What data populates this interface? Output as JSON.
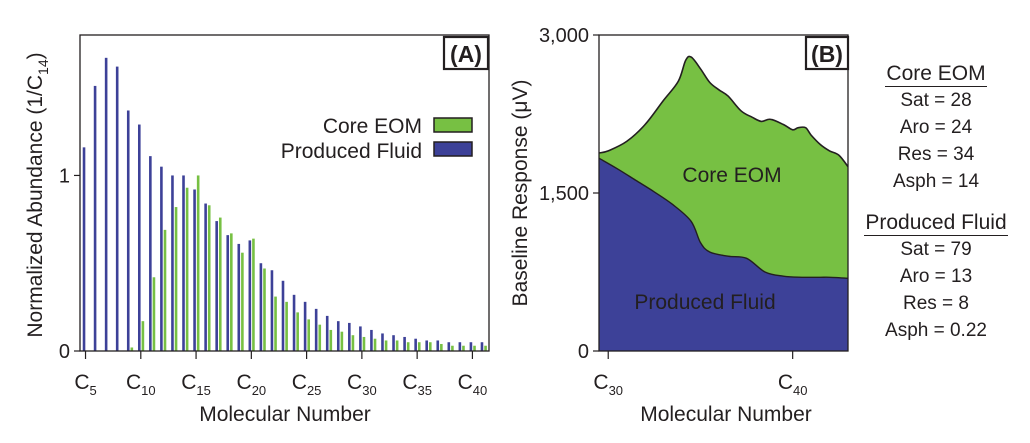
{
  "colors": {
    "core": "#77c043",
    "produced": "#3d4198",
    "ink": "#231f20"
  },
  "panels": [
    {
      "label": "(A)",
      "ylabel": "Normalized Abundance (1/C",
      "ylabel_sub": "14",
      "ylabel_close": ")",
      "xlabel": "Molecular Number",
      "legend": [
        {
          "label": "Core EOM",
          "color": "core"
        },
        {
          "label": "Produced Fluid",
          "color": "produced"
        }
      ]
    },
    {
      "label": "(B)",
      "ylabel": "Baseline Response (μV)",
      "xlabel": "Molecular Number",
      "area_labels": {
        "core": "Core EOM",
        "produced": "Produced Fluid"
      }
    }
  ],
  "chart_data": [
    {
      "type": "bar",
      "title": "(A)",
      "xlabel": "Molecular Number",
      "ylabel": "Normalized Abundance (1/C14)",
      "x": [
        5,
        6,
        7,
        8,
        9,
        10,
        11,
        12,
        13,
        14,
        15,
        16,
        17,
        18,
        19,
        20,
        21,
        22,
        23,
        24,
        25,
        26,
        27,
        28,
        29,
        30,
        31,
        32,
        33,
        34,
        35,
        36,
        37,
        38,
        39,
        40,
        41
      ],
      "xlim": [
        4.5,
        41.5
      ],
      "ylim": [
        0,
        1.8
      ],
      "yticks": [
        {
          "v": 0,
          "label": "0"
        },
        {
          "v": 1,
          "label": "1"
        }
      ],
      "xticks": [
        {
          "v": 5,
          "base": "C",
          "sub": "5"
        },
        {
          "v": 10,
          "base": "C",
          "sub": "10"
        },
        {
          "v": 15,
          "base": "C",
          "sub": "15"
        },
        {
          "v": 20,
          "base": "C",
          "sub": "20"
        },
        {
          "v": 25,
          "base": "C",
          "sub": "25"
        },
        {
          "v": 30,
          "base": "C",
          "sub": "30"
        },
        {
          "v": 35,
          "base": "C",
          "sub": "35"
        },
        {
          "v": 40,
          "base": "C",
          "sub": "40"
        }
      ],
      "series": [
        {
          "name": "Core EOM",
          "color": "core",
          "values": [
            0,
            0,
            0,
            0,
            0.02,
            0.17,
            0.42,
            0.69,
            0.82,
            0.93,
            1.0,
            0.83,
            0.76,
            0.67,
            0.56,
            0.64,
            0.47,
            0.31,
            0.28,
            0.22,
            0.18,
            0.15,
            0.12,
            0.11,
            0.09,
            0.08,
            0.07,
            0.06,
            0.06,
            0.05,
            0.05,
            0.05,
            0.04,
            0.03,
            0.03,
            0.03,
            0.03
          ]
        },
        {
          "name": "Produced Fluid",
          "color": "produced",
          "values": [
            1.16,
            1.51,
            1.67,
            1.62,
            1.37,
            1.29,
            1.11,
            1.05,
            1.0,
            1.0,
            0.92,
            0.84,
            0.74,
            0.66,
            0.61,
            0.63,
            0.5,
            0.46,
            0.4,
            0.32,
            0.28,
            0.24,
            0.2,
            0.17,
            0.16,
            0.14,
            0.12,
            0.1,
            0.09,
            0.08,
            0.07,
            0.06,
            0.06,
            0.05,
            0.05,
            0.05,
            0.05
          ]
        }
      ]
    },
    {
      "type": "area",
      "title": "(B)",
      "xlabel": "Molecular Number",
      "ylabel": "Baseline Response (μV)",
      "xlim": [
        29.5,
        43
      ],
      "ylim": [
        0,
        3000
      ],
      "yticks": [
        {
          "v": 0,
          "label": "0"
        },
        {
          "v": 1500,
          "label": "1,500"
        },
        {
          "v": 3000,
          "label": "3,000"
        }
      ],
      "xticks": [
        {
          "v": 30,
          "base": "C",
          "sub": "30"
        },
        {
          "v": 40,
          "base": "C",
          "sub": "40"
        }
      ],
      "series": [
        {
          "name": "Produced Fluid",
          "color": "produced",
          "x": [
            29.5,
            30.5,
            31.5,
            32.5,
            33.5,
            34.5,
            35.0,
            35.5,
            36.5,
            37.5,
            38.5,
            39.5,
            40.5,
            41.5,
            42.0,
            43.0
          ],
          "y": [
            1830,
            1730,
            1620,
            1510,
            1390,
            1230,
            1030,
            940,
            900,
            880,
            750,
            710,
            700,
            700,
            700,
            690
          ]
        },
        {
          "name": "Core EOM",
          "color": "core",
          "x": [
            29.5,
            30.0,
            31.0,
            32.0,
            33.0,
            33.8,
            34.2,
            34.5,
            35.0,
            35.5,
            36.0,
            36.5,
            37.2,
            37.8,
            38.3,
            38.8,
            39.5,
            40.0,
            40.3,
            40.7,
            41.0,
            41.5,
            42.0,
            42.5,
            43.0
          ],
          "y": [
            1880,
            1900,
            1990,
            2150,
            2380,
            2560,
            2760,
            2790,
            2680,
            2550,
            2480,
            2420,
            2280,
            2220,
            2180,
            2200,
            2150,
            2100,
            2120,
            2120,
            2050,
            1960,
            1900,
            1860,
            1750
          ]
        }
      ]
    }
  ],
  "composition": {
    "core": {
      "title": "Core EOM",
      "rows": [
        "Sat = 28",
        "Aro = 24",
        "Res = 34",
        "Asph = 14"
      ]
    },
    "produced": {
      "title": "Produced Fluid",
      "rows": [
        "Sat = 79",
        "Aro = 13",
        "Res = 8",
        "Asph = 0.22"
      ]
    }
  }
}
